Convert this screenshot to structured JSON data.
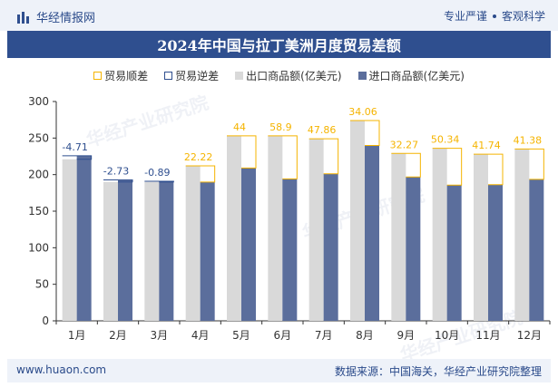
{
  "header": {
    "brand": "华经情报网",
    "tags": [
      "专业严谨",
      "客观科学"
    ]
  },
  "title": "2024年中国与拉丁美洲月度贸易差额",
  "legend": {
    "surplus": "贸易顺差",
    "deficit": "贸易逆差",
    "export": "出口商品额(亿美元)",
    "import": "进口商品额(亿美元)"
  },
  "footer": {
    "website": "www.huaon.com",
    "source": "数据来源：中国海关，华经产业研究院整理"
  },
  "watermark": "华经产业研究院",
  "colors": {
    "export": "#d9d9d9",
    "import": "#5b6e9c",
    "surplus": "#f5b400",
    "deficit": "#2f4f8f",
    "header": "#2f4f8f"
  },
  "chart_data": {
    "type": "bar",
    "categories": [
      "1月",
      "2月",
      "3月",
      "4月",
      "5月",
      "6月",
      "7月",
      "8月",
      "9月",
      "10月",
      "11月",
      "12月"
    ],
    "series": [
      {
        "name": "出口商品额(亿美元)",
        "values": [
          221,
          190,
          190,
          212,
          253,
          253,
          249,
          274,
          229,
          236,
          228,
          235
        ]
      },
      {
        "name": "进口商品额(亿美元)",
        "values": [
          225.71,
          192.73,
          190.89,
          189.78,
          209,
          194.1,
          201.14,
          239.94,
          196.73,
          185.66,
          186.26,
          193.62
        ]
      }
    ],
    "balance": {
      "values": [
        -4.71,
        -2.73,
        -0.89,
        22.22,
        44,
        58.9,
        47.86,
        34.06,
        32.27,
        50.34,
        41.74,
        41.38
      ],
      "labels": [
        "-4.71",
        "-2.73",
        "-0.89",
        "22.22",
        "44",
        "58.9",
        "47.86",
        "34.06",
        "32.27",
        "50.34",
        "41.74",
        "41.38"
      ]
    },
    "yticks": [
      "0",
      "50",
      "100",
      "150",
      "200",
      "250",
      "300"
    ],
    "ylim": [
      0,
      300
    ],
    "grid": false
  }
}
